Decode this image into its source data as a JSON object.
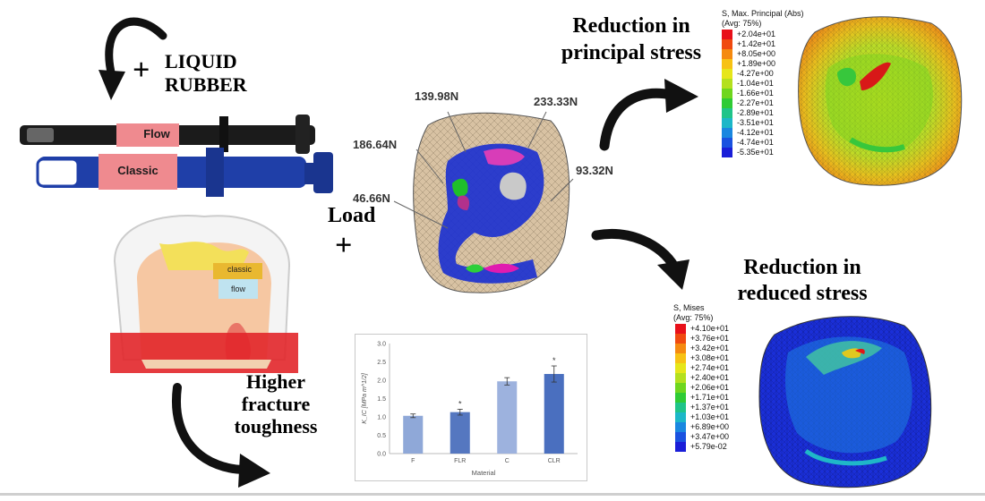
{
  "labels": {
    "liquid_rubber_line1": "LIQUID",
    "liquid_rubber_line2": "RUBBER",
    "syringe_flow": "Flow",
    "syringe_classic": "Classic",
    "tooth_classic": "classic",
    "tooth_flow": "flow",
    "load": "Load",
    "higher_line1": "Higher",
    "higher_line2": "fracture",
    "higher_line3": "toughness",
    "reduction1_line1": "Reduction in",
    "reduction1_line2": "principal stress",
    "reduction2_line1": "Reduction in",
    "reduction2_line2": "reduced stress"
  },
  "forces": {
    "f1": "139.98N",
    "f2": "233.33N",
    "f3": "186.64N",
    "f4": "93.32N",
    "f5": "46.66N"
  },
  "principal_legend": {
    "title_line1": "S, Max. Principal (Abs)",
    "title_line2": "(Avg: 75%)",
    "values": [
      "+2.04e+01",
      "+1.42e+01",
      "+8.05e+00",
      "+1.89e+00",
      "-4.27e+00",
      "-1.04e+01",
      "-1.66e+01",
      "-2.27e+01",
      "-2.89e+01",
      "-3.51e+01",
      "-4.12e+01",
      "-4.74e+01",
      "-5.35e+01"
    ],
    "colors": [
      "#e8101a",
      "#f04a10",
      "#f58a10",
      "#f7c214",
      "#e6e61a",
      "#b4e01e",
      "#6fd61e",
      "#2fcb35",
      "#1fc489",
      "#1cb7c8",
      "#1a87e0",
      "#1a52e0",
      "#1a1ed8"
    ]
  },
  "mises_legend": {
    "title_line1": "S, Mises",
    "title_line2": "(Avg: 75%)",
    "values": [
      "+4.10e+01",
      "+3.76e+01",
      "+3.42e+01",
      "+3.08e+01",
      "+2.74e+01",
      "+2.40e+01",
      "+2.06e+01",
      "+1.71e+01",
      "+1.37e+01",
      "+1.03e+01",
      "+6.89e+00",
      "+3.47e+00",
      "+5.79e-02"
    ],
    "colors": [
      "#e8101a",
      "#f04a10",
      "#f58a10",
      "#f7c214",
      "#e6e61a",
      "#b4e01e",
      "#6fd61e",
      "#2fcb35",
      "#1fc489",
      "#1cb7c8",
      "#1a87e0",
      "#1a52e0",
      "#1a1ed8"
    ]
  },
  "chart_data": {
    "type": "bar",
    "categories": [
      "F",
      "FLR",
      "C",
      "CLR"
    ],
    "values": [
      1.03,
      1.13,
      1.97,
      2.17
    ],
    "errors": [
      0.05,
      0.08,
      0.1,
      0.22
    ],
    "significant": [
      false,
      true,
      false,
      true
    ],
    "xlabel": "Material",
    "ylabel": "K_IC [MPa m^1/2]",
    "ylim": [
      0,
      3.0
    ],
    "yticks": [
      "0.0",
      "0.5",
      "1.0",
      "1.5",
      "2.0",
      "2.5",
      "3.0"
    ],
    "colors": [
      "#8fa8d8",
      "#5577c0",
      "#9db2de",
      "#4a6fbf"
    ],
    "grid": false
  }
}
